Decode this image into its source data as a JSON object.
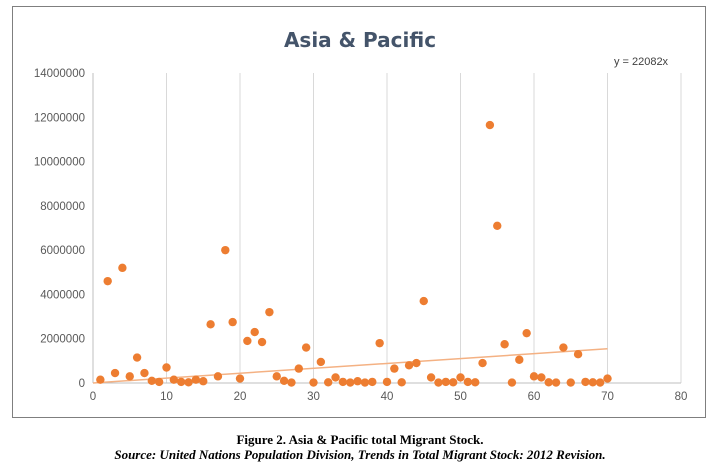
{
  "chart_data": {
    "type": "scatter",
    "title": "Asia & Pacific",
    "xlabel": "",
    "ylabel": "",
    "xlim": [
      0,
      80
    ],
    "ylim": [
      0,
      14000000
    ],
    "x_ticks": [
      "0",
      "10",
      "20",
      "30",
      "40",
      "50",
      "60",
      "70",
      "80"
    ],
    "y_ticks": [
      "0",
      "2000000",
      "4000000",
      "6000000",
      "8000000",
      "10000000",
      "12000000",
      "14000000"
    ],
    "grid": "vertical",
    "point_color": "#ed7d31",
    "trendline": {
      "label": "y = 22082x",
      "slope": 22082,
      "x_range": [
        0,
        70
      ],
      "color": "#f4b183"
    },
    "points": [
      [
        1,
        150000
      ],
      [
        2,
        4600000
      ],
      [
        3,
        450000
      ],
      [
        4,
        5200000
      ],
      [
        5,
        300000
      ],
      [
        6,
        1150000
      ],
      [
        7,
        450000
      ],
      [
        8,
        100000
      ],
      [
        9,
        50000
      ],
      [
        10,
        700000
      ],
      [
        11,
        150000
      ],
      [
        12,
        50000
      ],
      [
        13,
        30000
      ],
      [
        14,
        150000
      ],
      [
        15,
        80000
      ],
      [
        16,
        2650000
      ],
      [
        17,
        300000
      ],
      [
        18,
        6000000
      ],
      [
        19,
        2750000
      ],
      [
        20,
        200000
      ],
      [
        21,
        1900000
      ],
      [
        22,
        2300000
      ],
      [
        23,
        1850000
      ],
      [
        24,
        3200000
      ],
      [
        25,
        300000
      ],
      [
        26,
        100000
      ],
      [
        27,
        20000
      ],
      [
        28,
        650000
      ],
      [
        29,
        1600000
      ],
      [
        30,
        20000
      ],
      [
        31,
        950000
      ],
      [
        32,
        30000
      ],
      [
        33,
        250000
      ],
      [
        34,
        50000
      ],
      [
        35,
        20000
      ],
      [
        36,
        80000
      ],
      [
        37,
        20000
      ],
      [
        38,
        50000
      ],
      [
        39,
        1800000
      ],
      [
        40,
        50000
      ],
      [
        41,
        650000
      ],
      [
        42,
        30000
      ],
      [
        43,
        800000
      ],
      [
        44,
        900000
      ],
      [
        45,
        3700000
      ],
      [
        46,
        250000
      ],
      [
        47,
        20000
      ],
      [
        48,
        50000
      ],
      [
        49,
        30000
      ],
      [
        50,
        250000
      ],
      [
        51,
        50000
      ],
      [
        52,
        30000
      ],
      [
        53,
        900000
      ],
      [
        54,
        11650000
      ],
      [
        55,
        7100000
      ],
      [
        56,
        1750000
      ],
      [
        57,
        20000
      ],
      [
        58,
        1050000
      ],
      [
        59,
        2250000
      ],
      [
        60,
        300000
      ],
      [
        61,
        250000
      ],
      [
        62,
        30000
      ],
      [
        63,
        20000
      ],
      [
        64,
        1600000
      ],
      [
        65,
        20000
      ],
      [
        66,
        1300000
      ],
      [
        67,
        50000
      ],
      [
        68,
        30000
      ],
      [
        69,
        20000
      ],
      [
        70,
        200000
      ]
    ]
  },
  "caption": {
    "figure": "Figure 2. Asia & Pacific total Migrant Stock.",
    "source": "Source: United Nations Population Division, Trends in Total Migrant Stock: 2012 Revision."
  }
}
